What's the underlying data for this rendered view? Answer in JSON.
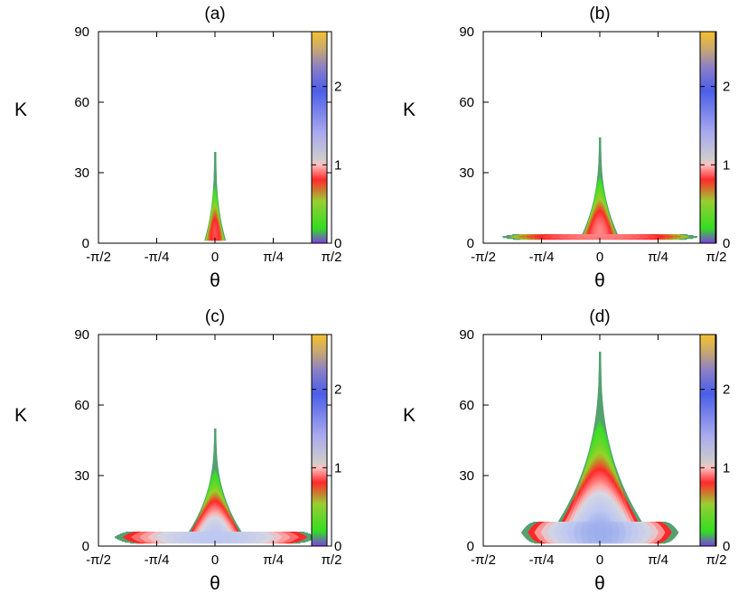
{
  "chart_data": [
    {
      "type": "heatmap",
      "title": "(a)",
      "xlabel": "θ",
      "ylabel": "K",
      "xlim": [
        -1.5708,
        1.5708
      ],
      "ylim": [
        0,
        90
      ],
      "xticks": [
        -1.5708,
        -0.7854,
        0,
        0.7854,
        1.5708
      ],
      "xtick_labels": [
        "-π/2",
        "-π/4",
        "0",
        "π/4",
        "π/2"
      ],
      "yticks": [
        0,
        30,
        60,
        90
      ],
      "ytick_labels": [
        "0",
        "30",
        "60",
        "90"
      ],
      "colorbar": {
        "min": 0,
        "max": 2.7,
        "ticks": [
          0,
          1,
          2
        ],
        "tick_labels": [
          "0",
          "1",
          "2"
        ]
      },
      "region": {
        "k_top": 39,
        "k_bottom": 1.5,
        "half_width_base": 0.13,
        "tail_height": 0,
        "tail_width": 0,
        "peak_value": 0.65,
        "peak_k": 5
      }
    },
    {
      "type": "heatmap",
      "title": "(b)",
      "xlabel": "θ",
      "ylabel": "K",
      "xlim": [
        -1.5708,
        1.5708
      ],
      "ylim": [
        0,
        90
      ],
      "xticks": [
        -1.5708,
        -0.7854,
        0,
        0.7854,
        1.5708
      ],
      "xtick_labels": [
        "-π/2",
        "-π/4",
        "0",
        "π/4",
        "π/2"
      ],
      "yticks": [
        0,
        30,
        60,
        90
      ],
      "ytick_labels": [
        "0",
        "30",
        "60",
        "90"
      ],
      "colorbar": {
        "min": 0,
        "max": 2.7,
        "ticks": [
          0,
          1,
          2
        ],
        "tick_labels": [
          "0",
          "1",
          "2"
        ]
      },
      "region": {
        "k_top": 45,
        "k_bottom": 1.8,
        "half_width_base": 0.26,
        "tail_height": 2.2,
        "tail_width": 1.33,
        "peak_value": 0.8,
        "peak_k": 5
      }
    },
    {
      "type": "heatmap",
      "title": "(c)",
      "xlabel": "θ",
      "ylabel": "K",
      "xlim": [
        -1.5708,
        1.5708
      ],
      "ylim": [
        0,
        90
      ],
      "xticks": [
        -1.5708,
        -0.7854,
        0,
        0.7854,
        1.5708
      ],
      "xtick_labels": [
        "-π/2",
        "-π/4",
        "0",
        "π/4",
        "π/2"
      ],
      "yticks": [
        0,
        30,
        60,
        90
      ],
      "ytick_labels": [
        "0",
        "30",
        "60",
        "90"
      ],
      "colorbar": {
        "min": 0,
        "max": 2.7,
        "ticks": [
          0,
          1,
          2
        ],
        "tick_labels": [
          "0",
          "1",
          "2"
        ]
      },
      "region": {
        "k_top": 50,
        "k_bottom": 1.5,
        "half_width_base": 0.45,
        "tail_height": 5,
        "tail_width": 1.36,
        "peak_value": 1.4,
        "peak_k": 4
      }
    },
    {
      "type": "heatmap",
      "title": "(d)",
      "xlabel": "θ",
      "ylabel": "K",
      "xlim": [
        -1.5708,
        1.5708
      ],
      "ylim": [
        0,
        90
      ],
      "xticks": [
        -1.5708,
        -0.7854,
        0,
        0.7854,
        1.5708
      ],
      "xtick_labels": [
        "-π/2",
        "-π/4",
        "0",
        "π/4",
        "π/2"
      ],
      "yticks": [
        0,
        30,
        60,
        90
      ],
      "ytick_labels": [
        "0",
        "30",
        "60",
        "90"
      ],
      "colorbar": {
        "min": 0,
        "max": 2.7,
        "ticks": [
          0,
          1,
          2
        ],
        "tick_labels": [
          "0",
          "1",
          "2"
        ]
      },
      "region": {
        "k_top": 83,
        "k_bottom": 1.5,
        "half_width_base": 0.75,
        "tail_height": 9,
        "tail_width": 1.06,
        "peak_value": 1.6,
        "peak_k": 6
      }
    }
  ]
}
